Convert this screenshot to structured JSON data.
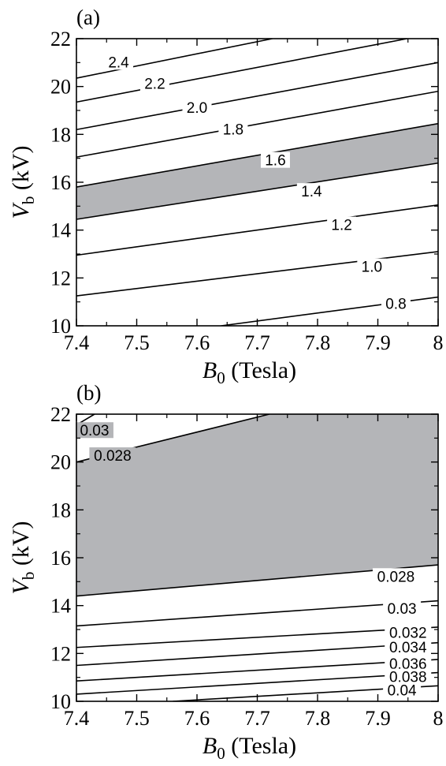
{
  "figure": {
    "panels": [
      "(a)",
      "(b)"
    ]
  },
  "chart_data": [
    {
      "type": "line",
      "panel_label": "(a)",
      "xlabel": {
        "main": "B",
        "sub": "0",
        "rest": " (Tesla)"
      },
      "ylabel": {
        "main": "V",
        "sub": "b",
        "rest": " (kV)"
      },
      "xlim": [
        7.4,
        8.0
      ],
      "ylim": [
        10,
        22
      ],
      "x_ticks": [
        7.4,
        7.5,
        7.6,
        7.7,
        7.8,
        7.9,
        8.0
      ],
      "x_tick_labels": [
        "7.4",
        "7.5",
        "7.6",
        "7.7",
        "7.8",
        "7.9",
        "8"
      ],
      "y_ticks": [
        10,
        12,
        14,
        16,
        18,
        20,
        22
      ],
      "y_tick_labels": [
        "10",
        "12",
        "14",
        "16",
        "18",
        "20",
        "22"
      ],
      "shaded_region": {
        "lower_contour": "1.4",
        "upper_contour": "1.6",
        "color": "#b4b5b8"
      },
      "series": [
        {
          "label": "2.4",
          "x": [
            7.4,
            7.725
          ],
          "y": [
            20.35,
            22.0
          ],
          "label_x": 7.47,
          "label_y": 21.0
        },
        {
          "label": "2.2",
          "x": [
            7.4,
            8.0
          ],
          "y": [
            19.35,
            22.25
          ],
          "label_x": 7.53,
          "label_y": 20.1
        },
        {
          "label": "2.0",
          "x": [
            7.4,
            8.0
          ],
          "y": [
            18.2,
            21.0
          ],
          "label_x": 7.6,
          "label_y": 19.1
        },
        {
          "label": "1.8",
          "x": [
            7.4,
            8.0
          ],
          "y": [
            17.05,
            19.8
          ],
          "label_x": 7.66,
          "label_y": 18.2
        },
        {
          "label": "1.6",
          "x": [
            7.4,
            8.0
          ],
          "y": [
            15.8,
            18.45
          ],
          "label_x": 7.73,
          "label_y": 16.9
        },
        {
          "label": "1.4",
          "x": [
            7.4,
            8.0
          ],
          "y": [
            14.45,
            16.8
          ],
          "label_x": 7.79,
          "label_y": 15.6
        },
        {
          "label": "1.2",
          "x": [
            7.4,
            8.0
          ],
          "y": [
            12.95,
            15.05
          ],
          "label_x": 7.84,
          "label_y": 14.2
        },
        {
          "label": "1.0",
          "x": [
            7.4,
            8.0
          ],
          "y": [
            11.25,
            13.1
          ],
          "label_x": 7.89,
          "label_y": 12.45
        },
        {
          "label": "0.8",
          "x": [
            7.64,
            8.0
          ],
          "y": [
            10.0,
            11.2
          ],
          "label_x": 7.93,
          "label_y": 10.9
        }
      ]
    },
    {
      "type": "line",
      "panel_label": "(b)",
      "xlabel": {
        "main": "B",
        "sub": "0",
        "rest": " (Tesla)"
      },
      "ylabel": {
        "main": "V",
        "sub": "b",
        "rest": " (kV)"
      },
      "xlim": [
        7.4,
        8.0
      ],
      "ylim": [
        10,
        22
      ],
      "x_ticks": [
        7.4,
        7.5,
        7.6,
        7.7,
        7.8,
        7.9,
        8.0
      ],
      "x_tick_labels": [
        "7.4",
        "7.5",
        "7.6",
        "7.7",
        "7.8",
        "7.9",
        "8"
      ],
      "y_ticks": [
        10,
        12,
        14,
        16,
        18,
        20,
        22
      ],
      "y_tick_labels": [
        "10",
        "12",
        "14",
        "16",
        "18",
        "20",
        "22"
      ],
      "shaded_region": {
        "lower_contour": "0.028 (lower)",
        "upper_contour": "0.028 (upper)",
        "color": "#b4b5b8"
      },
      "series": [
        {
          "label": "0.03",
          "x": [
            7.4,
            7.43
          ],
          "y": [
            21.55,
            22.0
          ],
          "label_x": 7.43,
          "label_y": 21.3
        },
        {
          "label": "0.028",
          "x": [
            7.4,
            7.72
          ],
          "y": [
            20.0,
            22.0
          ],
          "label_x": 7.46,
          "label_y": 20.25
        },
        {
          "label": "0.028",
          "x": [
            7.4,
            8.0
          ],
          "y": [
            14.4,
            15.7
          ],
          "label_x": 7.93,
          "label_y": 15.2
        },
        {
          "label": "0.03",
          "x": [
            7.4,
            8.0
          ],
          "y": [
            13.15,
            14.2
          ],
          "label_x": 7.94,
          "label_y": 13.85
        },
        {
          "label": "0.032",
          "x": [
            7.4,
            8.0
          ],
          "y": [
            12.25,
            13.1
          ],
          "label_x": 7.95,
          "label_y": 12.85
        },
        {
          "label": "0.034",
          "x": [
            7.4,
            8.0
          ],
          "y": [
            11.5,
            12.45
          ],
          "label_x": 7.95,
          "label_y": 12.25
        },
        {
          "label": "0.036",
          "x": [
            7.4,
            8.0
          ],
          "y": [
            10.85,
            11.75
          ],
          "label_x": 7.95,
          "label_y": 11.55
        },
        {
          "label": "0.038",
          "x": [
            7.4,
            8.0
          ],
          "y": [
            10.3,
            11.2
          ],
          "label_x": 7.95,
          "label_y": 11.0
        },
        {
          "label": "0.04",
          "x": [
            7.56,
            8.0
          ],
          "y": [
            10.0,
            10.65
          ],
          "label_x": 7.94,
          "label_y": 10.45
        }
      ]
    }
  ]
}
